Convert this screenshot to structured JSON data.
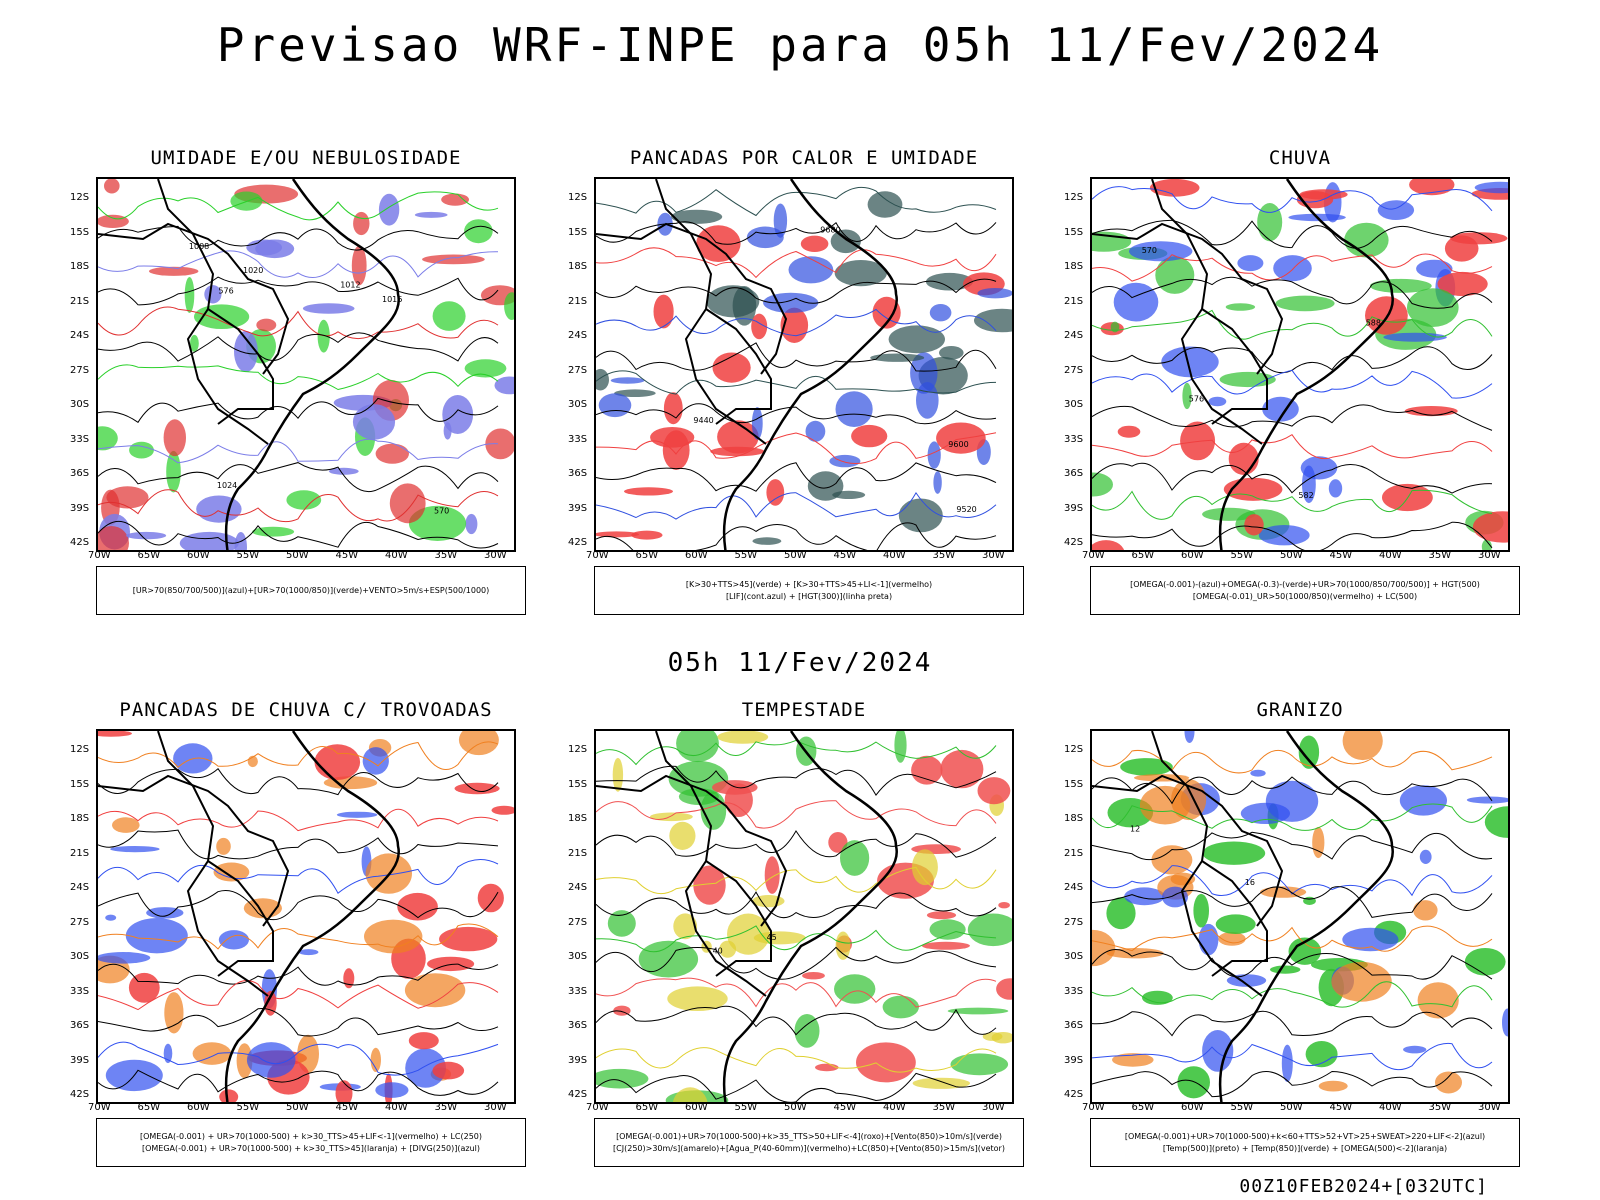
{
  "header": {
    "title": "Previsao WRF-INPE  para 05h 11/Fev/2024"
  },
  "mid_title": "05h 11/Fev/2024",
  "footer": "00Z10FEB2024+[032UTC]",
  "axes": {
    "lat_labels": [
      "12S",
      "15S",
      "18S",
      "21S",
      "24S",
      "27S",
      "30S",
      "33S",
      "36S",
      "39S",
      "42S"
    ],
    "lon_labels": [
      "70W",
      "65W",
      "60W",
      "55W",
      "50W",
      "45W",
      "40W",
      "35W",
      "30W"
    ]
  },
  "panels": [
    {
      "title": "UMIDADE E/OU NEBULOSIDADE",
      "legend": [
        "[UR>70(850/700/500)](azul)+[UR>70(1000/850)](verde)+VENTO>5m/s+ESP(500/1000)"
      ],
      "colors": {
        "primary": "#7b7de8",
        "secondary": "#2ad02a",
        "accent": "#e03030"
      },
      "contour_labels": [
        "1008",
        "1012",
        "1016",
        "1020",
        "1024",
        "570",
        "576"
      ]
    },
    {
      "title": "PANCADAS POR CALOR E UMIDADE",
      "legend": [
        "[K>30+TTS>45](verde) + [K>30+TTS>45+LI<-1](vermelho)",
        "[LIF](cont.azul) + [HGT(300)](linha preta)"
      ],
      "colors": {
        "primary": "#f04040",
        "secondary": "#2c5050",
        "accent": "#3050e0"
      },
      "contour_labels": [
        "9600",
        "9680",
        "9520",
        "9440"
      ]
    },
    {
      "title": "CHUVA",
      "legend": [
        "[OMEGA(-0.001)-(azul)+OMEGA(-0.3)-(verde)+UR>70(1000/850/700/500)] + HGT(500)",
        "[OMEGA(-0.01)_UR>50(1000/850)(vermelho) + LC(500)"
      ],
      "colors": {
        "primary": "#f04040",
        "secondary": "#3050f0",
        "accent": "#30c030"
      },
      "contour_labels": [
        "588",
        "582",
        "576",
        "570"
      ]
    },
    {
      "title": "PANCADAS DE CHUVA C/ TROVOADAS",
      "legend": [
        "[OMEGA(-0.001) + UR>70(1000-500) + k>30_TTS>45+LIF<-1](vermelho) + LC(250)",
        "[OMEGA(-0.001) + UR>70(1000-500) + k>30_TTS>45](laranja) + [DIVG(250)](azul)"
      ],
      "colors": {
        "primary": "#f04040",
        "secondary": "#f08020",
        "accent": "#3050f0"
      },
      "contour_labels": []
    },
    {
      "title": "TEMPESTADE",
      "legend": [
        "[OMEGA(-0.001)+UR>70(1000-500)+k>35_TTS>50+LIF<-4](roxo)+[Vento(850)>10m/s](verde)",
        "[CJ(250)>30m/s](amarelo)+[Agua_P(40-60mm)](vermelho)+LC(850)+[Vento(850)>15m/s](vetor)"
      ],
      "colors": {
        "primary": "#f05050",
        "secondary": "#30c030",
        "accent": "#e0d030"
      },
      "contour_labels": [
        "40",
        "45"
      ]
    },
    {
      "title": "GRANIZO",
      "legend": [
        "[OMEGA(-0.001)+UR>70(1000-500)+k<60+TTS>52+VT>25+SWEAT>220+LIF<-2](azul)",
        "[Temp(500)](preto) + [Temp(850)](verde) + [OMEGA(500)<-2](laranja)"
      ],
      "colors": {
        "primary": "#30c030",
        "secondary": "#f08020",
        "accent": "#3050f0"
      },
      "contour_labels": [
        "12",
        "16"
      ]
    }
  ]
}
